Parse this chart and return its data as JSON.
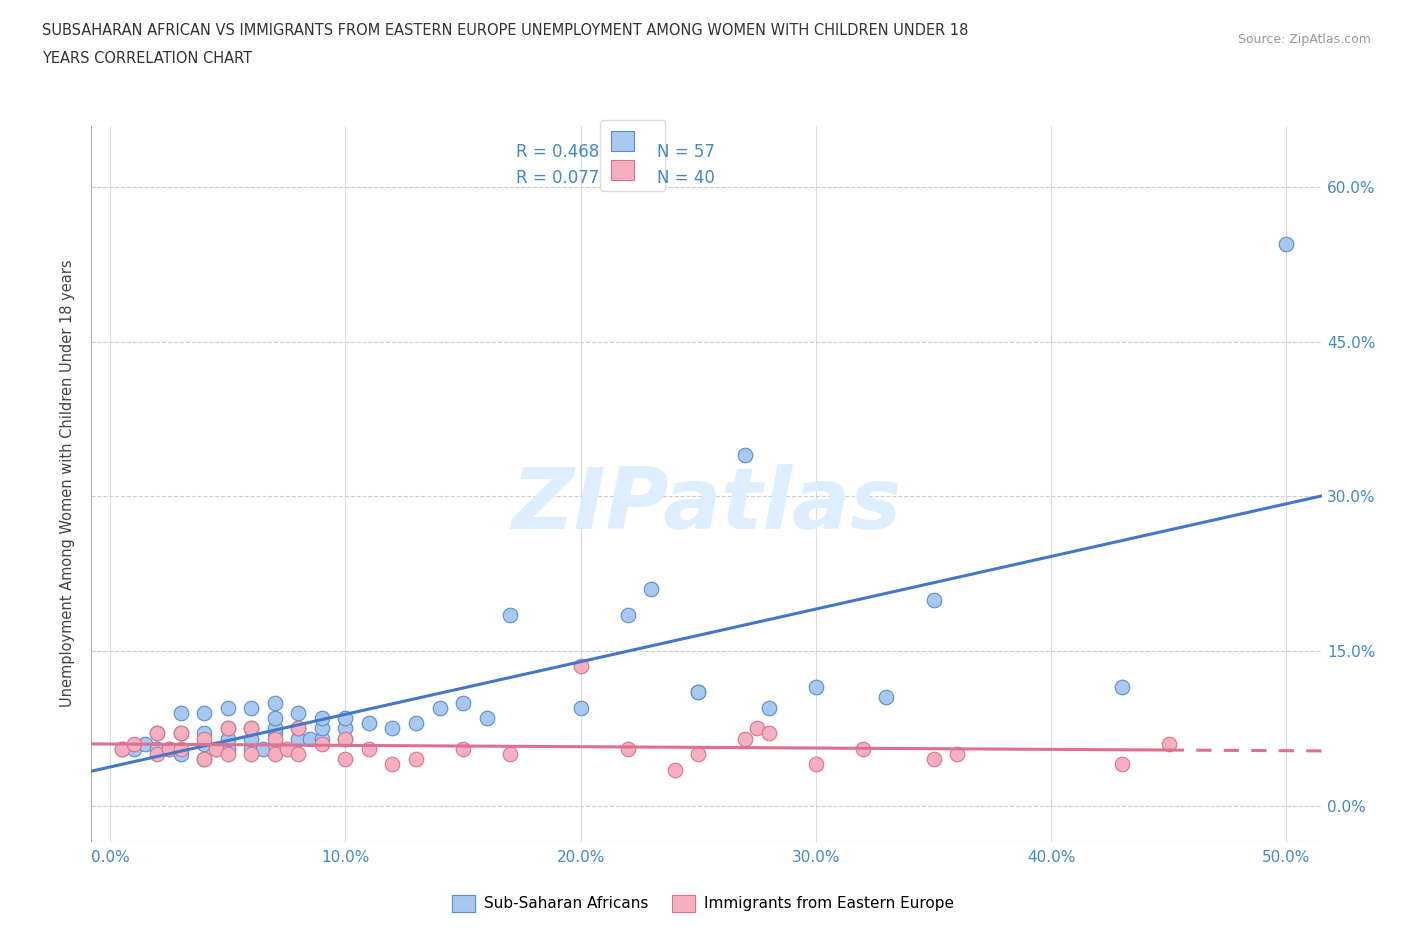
{
  "title_line1": "SUBSAHARAN AFRICAN VS IMMIGRANTS FROM EASTERN EUROPE UNEMPLOYMENT AMONG WOMEN WITH CHILDREN UNDER 18",
  "title_line2": "YEARS CORRELATION CHART",
  "source": "Source: ZipAtlas.com",
  "xlim": [
    -0.008,
    0.515
  ],
  "ylim": [
    -0.035,
    0.66
  ],
  "xlabel_ticks": [
    0.0,
    0.1,
    0.2,
    0.3,
    0.4,
    0.5
  ],
  "ylabel_ticks": [
    0.0,
    0.15,
    0.3,
    0.45,
    0.6
  ],
  "axis_color": "#4488cc",
  "grid_color": "#cccccc",
  "blue_fill": "#a8c8f0",
  "blue_edge": "#5590cc",
  "pink_fill": "#f5b0c0",
  "pink_edge": "#e07090",
  "blue_line": "#4477cc",
  "pink_line": "#e07090",
  "watermark_color": "#ddeeff",
  "ylabel_text": "Unemployment Among Women with Children Under 18 years",
  "legend_text_color": "#4488cc",
  "blue_x": [
    0.005,
    0.01,
    0.015,
    0.02,
    0.02,
    0.025,
    0.03,
    0.03,
    0.03,
    0.04,
    0.04,
    0.04,
    0.04,
    0.045,
    0.05,
    0.05,
    0.05,
    0.05,
    0.06,
    0.06,
    0.06,
    0.06,
    0.065,
    0.07,
    0.07,
    0.07,
    0.07,
    0.07,
    0.08,
    0.08,
    0.08,
    0.085,
    0.09,
    0.09,
    0.09,
    0.1,
    0.1,
    0.1,
    0.11,
    0.12,
    0.13,
    0.14,
    0.15,
    0.16,
    0.17,
    0.2,
    0.22,
    0.23,
    0.25,
    0.25,
    0.27,
    0.28,
    0.3,
    0.33,
    0.35,
    0.43,
    0.5
  ],
  "blue_y": [
    0.055,
    0.055,
    0.06,
    0.055,
    0.07,
    0.055,
    0.05,
    0.07,
    0.09,
    0.045,
    0.06,
    0.07,
    0.09,
    0.055,
    0.055,
    0.065,
    0.075,
    0.095,
    0.055,
    0.065,
    0.075,
    0.095,
    0.055,
    0.06,
    0.07,
    0.075,
    0.085,
    0.1,
    0.065,
    0.075,
    0.09,
    0.065,
    0.065,
    0.075,
    0.085,
    0.065,
    0.075,
    0.085,
    0.08,
    0.075,
    0.08,
    0.095,
    0.1,
    0.085,
    0.185,
    0.095,
    0.185,
    0.21,
    0.11,
    0.11,
    0.34,
    0.095,
    0.115,
    0.105,
    0.2,
    0.115,
    0.545
  ],
  "pink_x": [
    0.005,
    0.01,
    0.02,
    0.02,
    0.025,
    0.03,
    0.03,
    0.04,
    0.04,
    0.045,
    0.05,
    0.05,
    0.06,
    0.06,
    0.07,
    0.07,
    0.075,
    0.08,
    0.08,
    0.09,
    0.1,
    0.1,
    0.11,
    0.12,
    0.13,
    0.15,
    0.17,
    0.2,
    0.22,
    0.24,
    0.25,
    0.27,
    0.275,
    0.28,
    0.3,
    0.32,
    0.35,
    0.36,
    0.43,
    0.45
  ],
  "pink_y": [
    0.055,
    0.06,
    0.05,
    0.07,
    0.055,
    0.055,
    0.07,
    0.045,
    0.065,
    0.055,
    0.05,
    0.075,
    0.05,
    0.075,
    0.05,
    0.065,
    0.055,
    0.05,
    0.075,
    0.06,
    0.045,
    0.065,
    0.055,
    0.04,
    0.045,
    0.055,
    0.05,
    0.135,
    0.055,
    0.035,
    0.05,
    0.065,
    0.075,
    0.07,
    0.04,
    0.055,
    0.045,
    0.05,
    0.04,
    0.06
  ]
}
